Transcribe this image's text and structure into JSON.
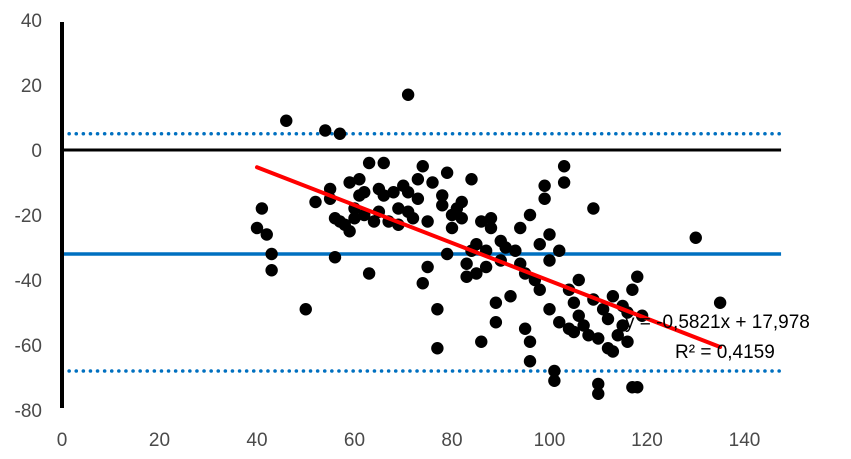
{
  "chart_data": {
    "type": "scatter",
    "title": "",
    "xlabel": "",
    "ylabel": "",
    "xlim": [
      0,
      150
    ],
    "ylim": [
      -80,
      40
    ],
    "x_ticks": [
      "0",
      "20",
      "40",
      "60",
      "80",
      "100",
      "120",
      "140"
    ],
    "y_ticks": [
      "40",
      "20",
      "0",
      "-20",
      "-40",
      "-60",
      "-80"
    ],
    "grid": false,
    "colors": {
      "points": "#000000",
      "trend": "#ff0000",
      "mean_line": "#0070c0",
      "limit_lines": "#0070c0",
      "zero_line": "#000000"
    },
    "reference_lines": [
      {
        "name": "upper-limit",
        "y": 5,
        "style": "dotted"
      },
      {
        "name": "zero",
        "y": 0,
        "style": "solid"
      },
      {
        "name": "mean",
        "y": -32,
        "style": "solid"
      },
      {
        "name": "lower-limit",
        "y": -68,
        "style": "dotted"
      }
    ],
    "trendline": {
      "x": [
        40,
        135
      ],
      "slope": -0.5821,
      "intercept": 17.978
    },
    "equation": "y = -0,5821x + 17,978",
    "r_squared": "R² = 0,4159",
    "points": [
      [
        46,
        9
      ],
      [
        54,
        6
      ],
      [
        57,
        5
      ],
      [
        71,
        17
      ],
      [
        40,
        -24
      ],
      [
        41,
        -18
      ],
      [
        42,
        -26
      ],
      [
        43,
        -32
      ],
      [
        43,
        -37
      ],
      [
        50,
        -49
      ],
      [
        52,
        -16
      ],
      [
        55,
        -12
      ],
      [
        55,
        -15
      ],
      [
        56,
        -21
      ],
      [
        56,
        -33
      ],
      [
        57,
        -22
      ],
      [
        58,
        -23
      ],
      [
        59,
        -10
      ],
      [
        59,
        -25
      ],
      [
        60,
        -18
      ],
      [
        60,
        -21
      ],
      [
        61,
        -9
      ],
      [
        61,
        -14
      ],
      [
        62,
        -13
      ],
      [
        62,
        -20
      ],
      [
        63,
        -4
      ],
      [
        63,
        -38
      ],
      [
        64,
        -22
      ],
      [
        65,
        -19
      ],
      [
        65,
        -12
      ],
      [
        66,
        -14
      ],
      [
        66,
        -4
      ],
      [
        67,
        -22
      ],
      [
        68,
        -13
      ],
      [
        69,
        -18
      ],
      [
        69,
        -23
      ],
      [
        70,
        -11
      ],
      [
        71,
        -13
      ],
      [
        71,
        -19
      ],
      [
        72,
        -21
      ],
      [
        73,
        -9
      ],
      [
        73,
        -15
      ],
      [
        74,
        -5
      ],
      [
        74,
        -41
      ],
      [
        75,
        -36
      ],
      [
        75,
        -22
      ],
      [
        76,
        -10
      ],
      [
        77,
        -49
      ],
      [
        77,
        -61
      ],
      [
        78,
        -14
      ],
      [
        78,
        -17
      ],
      [
        79,
        -7
      ],
      [
        79,
        -32
      ],
      [
        80,
        -20
      ],
      [
        80,
        -24
      ],
      [
        81,
        -18
      ],
      [
        82,
        -21
      ],
      [
        82,
        -16
      ],
      [
        83,
        -39
      ],
      [
        83,
        -35
      ],
      [
        84,
        -9
      ],
      [
        84,
        -31
      ],
      [
        85,
        -29
      ],
      [
        85,
        -38
      ],
      [
        86,
        -59
      ],
      [
        86,
        -22
      ],
      [
        87,
        -31
      ],
      [
        87,
        -36
      ],
      [
        88,
        -24
      ],
      [
        88,
        -21
      ],
      [
        89,
        -47
      ],
      [
        89,
        -53
      ],
      [
        90,
        -28
      ],
      [
        90,
        -34
      ],
      [
        91,
        -30
      ],
      [
        92,
        -45
      ],
      [
        93,
        -31
      ],
      [
        94,
        -24
      ],
      [
        94,
        -35
      ],
      [
        95,
        -38
      ],
      [
        95,
        -55
      ],
      [
        96,
        -20
      ],
      [
        96,
        -59
      ],
      [
        96,
        -65
      ],
      [
        97,
        -40
      ],
      [
        98,
        -29
      ],
      [
        98,
        -43
      ],
      [
        99,
        -15
      ],
      [
        99,
        -11
      ],
      [
        100,
        -26
      ],
      [
        100,
        -34
      ],
      [
        100,
        -49
      ],
      [
        101,
        -71
      ],
      [
        101,
        -68
      ],
      [
        102,
        -31
      ],
      [
        102,
        -53
      ],
      [
        103,
        -5
      ],
      [
        103,
        -10
      ],
      [
        104,
        -43
      ],
      [
        104,
        -55
      ],
      [
        105,
        -47
      ],
      [
        105,
        -56
      ],
      [
        106,
        -51
      ],
      [
        106,
        -40
      ],
      [
        107,
        -54
      ],
      [
        108,
        -57
      ],
      [
        109,
        -18
      ],
      [
        109,
        -46
      ],
      [
        110,
        -58
      ],
      [
        110,
        -72
      ],
      [
        110,
        -75
      ],
      [
        111,
        -49
      ],
      [
        112,
        -52
      ],
      [
        112,
        -61
      ],
      [
        113,
        -45
      ],
      [
        113,
        -62
      ],
      [
        114,
        -57
      ],
      [
        115,
        -54
      ],
      [
        115,
        -48
      ],
      [
        116,
        -59
      ],
      [
        116,
        -50
      ],
      [
        117,
        -43
      ],
      [
        117,
        -73
      ],
      [
        118,
        -73
      ],
      [
        118,
        -39
      ],
      [
        119,
        -51
      ],
      [
        130,
        -27
      ],
      [
        135,
        -47
      ]
    ]
  }
}
